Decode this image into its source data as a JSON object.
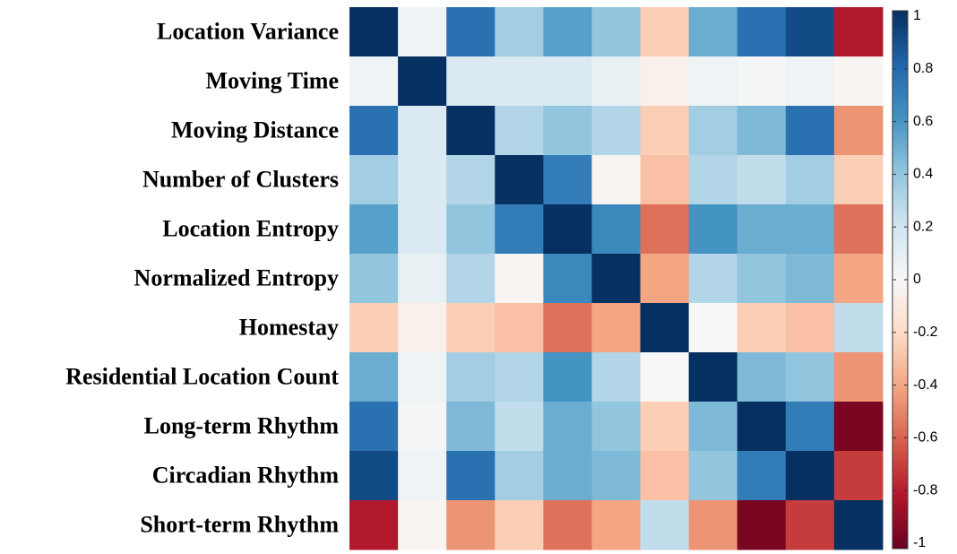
{
  "chart_data": {
    "type": "heatmap",
    "rows": [
      "Location Variance",
      "Moving Time",
      "Moving Distance",
      "Number of Clusters",
      "Location Entropy",
      "Normalized Entropy",
      "Homestay",
      "Residential Location Count",
      "Long-term Rhythm",
      "Circadian Rhythm",
      "Short-term Rhythm"
    ],
    "values": [
      [
        1,
        0.05,
        0.75,
        0.35,
        0.55,
        0.4,
        -0.25,
        0.5,
        0.75,
        0.9,
        -0.8
      ],
      [
        0.05,
        1,
        0.15,
        0.15,
        0.15,
        0.08,
        -0.05,
        0.05,
        0.02,
        0.05,
        -0.02
      ],
      [
        0.75,
        0.15,
        1,
        0.3,
        0.4,
        0.3,
        -0.25,
        0.35,
        0.45,
        0.75,
        -0.45
      ],
      [
        0.35,
        0.15,
        0.3,
        1,
        0.7,
        -0.02,
        -0.3,
        0.3,
        0.25,
        0.35,
        -0.25
      ],
      [
        0.55,
        0.15,
        0.4,
        0.7,
        1,
        0.65,
        -0.55,
        0.6,
        0.5,
        0.5,
        -0.55
      ],
      [
        0.4,
        0.08,
        0.3,
        -0.02,
        0.65,
        1,
        -0.4,
        0.3,
        0.4,
        0.45,
        -0.4
      ],
      [
        -0.25,
        -0.05,
        -0.25,
        -0.3,
        -0.55,
        -0.4,
        1,
        0,
        -0.25,
        -0.3,
        0.25
      ],
      [
        0.5,
        0.05,
        0.35,
        0.3,
        0.6,
        0.3,
        0,
        1,
        0.45,
        0.4,
        -0.45
      ],
      [
        0.75,
        0.02,
        0.45,
        0.25,
        0.5,
        0.4,
        -0.25,
        0.45,
        1,
        0.7,
        -0.95
      ],
      [
        0.9,
        0.05,
        0.75,
        0.35,
        0.5,
        0.45,
        -0.3,
        0.4,
        0.7,
        1,
        -0.7
      ],
      [
        -0.8,
        -0.02,
        -0.45,
        -0.25,
        -0.55,
        -0.4,
        0.25,
        -0.45,
        -0.95,
        -0.7,
        1
      ]
    ],
    "colormap": "RdBu",
    "zlim": [
      -1,
      1
    ],
    "zticks": [
      1,
      0.8,
      0.6,
      0.4,
      0.2,
      0,
      -0.2,
      -0.4,
      -0.6,
      -0.8,
      -1
    ]
  }
}
